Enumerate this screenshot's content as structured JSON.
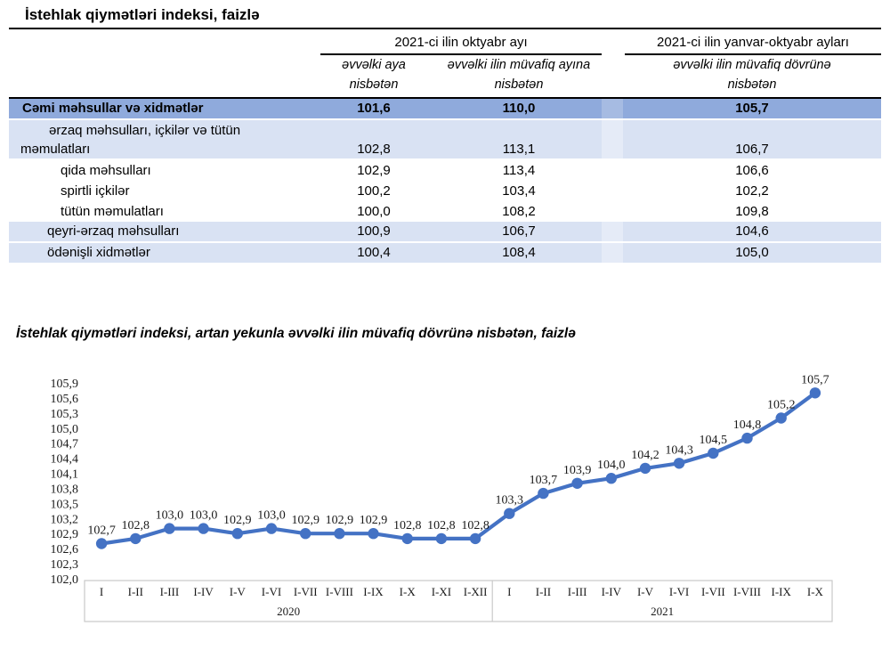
{
  "title": "İstehlak qiymətləri indeksi, faizlə",
  "table": {
    "group_headers": [
      {
        "label": "2021-ci ilin oktyabr ayı"
      },
      {
        "label": "2021-ci ilin yanvar-oktyabr ayları"
      }
    ],
    "sub_headers": [
      "əvvəlki aya nisbətən",
      "əvvəlki ilin müvafiq ayına nisbətən",
      "əvvəlki ilin müvafiq dövrünə nisbətən"
    ],
    "rows": [
      {
        "label": "Cəmi məhsullar və xidmətlər",
        "values": [
          "101,6",
          "110,0",
          "105,7"
        ],
        "style": "total"
      },
      {
        "label": "ərzaq məhsulları, içkilər və tütün məmulatları",
        "values": [
          "102,8",
          "113,1",
          "106,7"
        ],
        "style": "group"
      },
      {
        "label": "qida məhsulları",
        "values": [
          "102,9",
          "113,4",
          "106,6"
        ],
        "style": "sub"
      },
      {
        "label": "spirtli içkilər",
        "values": [
          "100,2",
          "103,4",
          "102,2"
        ],
        "style": "sub"
      },
      {
        "label": "tütün məmulatları",
        "values": [
          "100,0",
          "108,2",
          "109,8"
        ],
        "style": "sub"
      },
      {
        "label": "qeyri-ərzaq məhsulları",
        "values": [
          "100,9",
          "106,7",
          "104,6"
        ],
        "style": "group2"
      },
      {
        "label": "ödənişli xidmətlər",
        "values": [
          "100,4",
          "108,4",
          "105,0"
        ],
        "style": "group2"
      }
    ]
  },
  "chart_title": "İstehlak qiymətləri indeksi, artan yekunla əvvəlki ilin müvafiq dövrünə nisbətən, faizlə",
  "chart_data": {
    "type": "line",
    "series": [
      {
        "name": "İstehlak qiymətləri indeksi, artan yekunla",
        "values": [
          102.7,
          102.8,
          103.0,
          103.0,
          102.9,
          103.0,
          102.9,
          102.9,
          102.9,
          102.8,
          102.8,
          102.8,
          103.3,
          103.7,
          103.9,
          104.0,
          104.2,
          104.3,
          104.5,
          104.8,
          105.2,
          105.7
        ]
      }
    ],
    "point_labels": [
      "102,7",
      "102,8",
      "103,0",
      "103,0",
      "102,9",
      "103,0",
      "102,9",
      "102,9",
      "102,9",
      "102,8",
      "102,8",
      "102,8",
      "103,3",
      "103,7",
      "103,9",
      "104,0",
      "104,2",
      "104,3",
      "104,5",
      "104,8",
      "105,2",
      "105,7"
    ],
    "x_groups": [
      {
        "year": "2020",
        "labels": [
          "I",
          "I-II",
          "I-III",
          "I-IV",
          "I-V",
          "I-VI",
          "I-VII",
          "I-VIII",
          "I-IX",
          "I-X",
          "I-XI",
          "I-XII"
        ]
      },
      {
        "year": "2021",
        "labels": [
          "I",
          "I-II",
          "I-III",
          "I-IV",
          "I-V",
          "I-VI",
          "I-VII",
          "I-VIII",
          "I-IX",
          "I-X"
        ]
      }
    ],
    "y_ticks": [
      "105,9",
      "105,6",
      "105,3",
      "105,0",
      "104,7",
      "104,4",
      "104,1",
      "103,8",
      "103,5",
      "103,2",
      "102,9",
      "102,6",
      "102,3",
      "102,0"
    ],
    "ylim": [
      102.0,
      105.9
    ],
    "y_step": 0.3,
    "grid": false,
    "legend": "none",
    "line_color": "#4472C4",
    "box_border": "#C9C9C9"
  },
  "colors": {
    "row_total_bg": "#8FAADC",
    "row_total_spacer": "#A6BBE2",
    "row_group_bg": "#D9E2F3",
    "row_group_spacer": "#E5EBF7",
    "accent_line": "#4472C4"
  }
}
